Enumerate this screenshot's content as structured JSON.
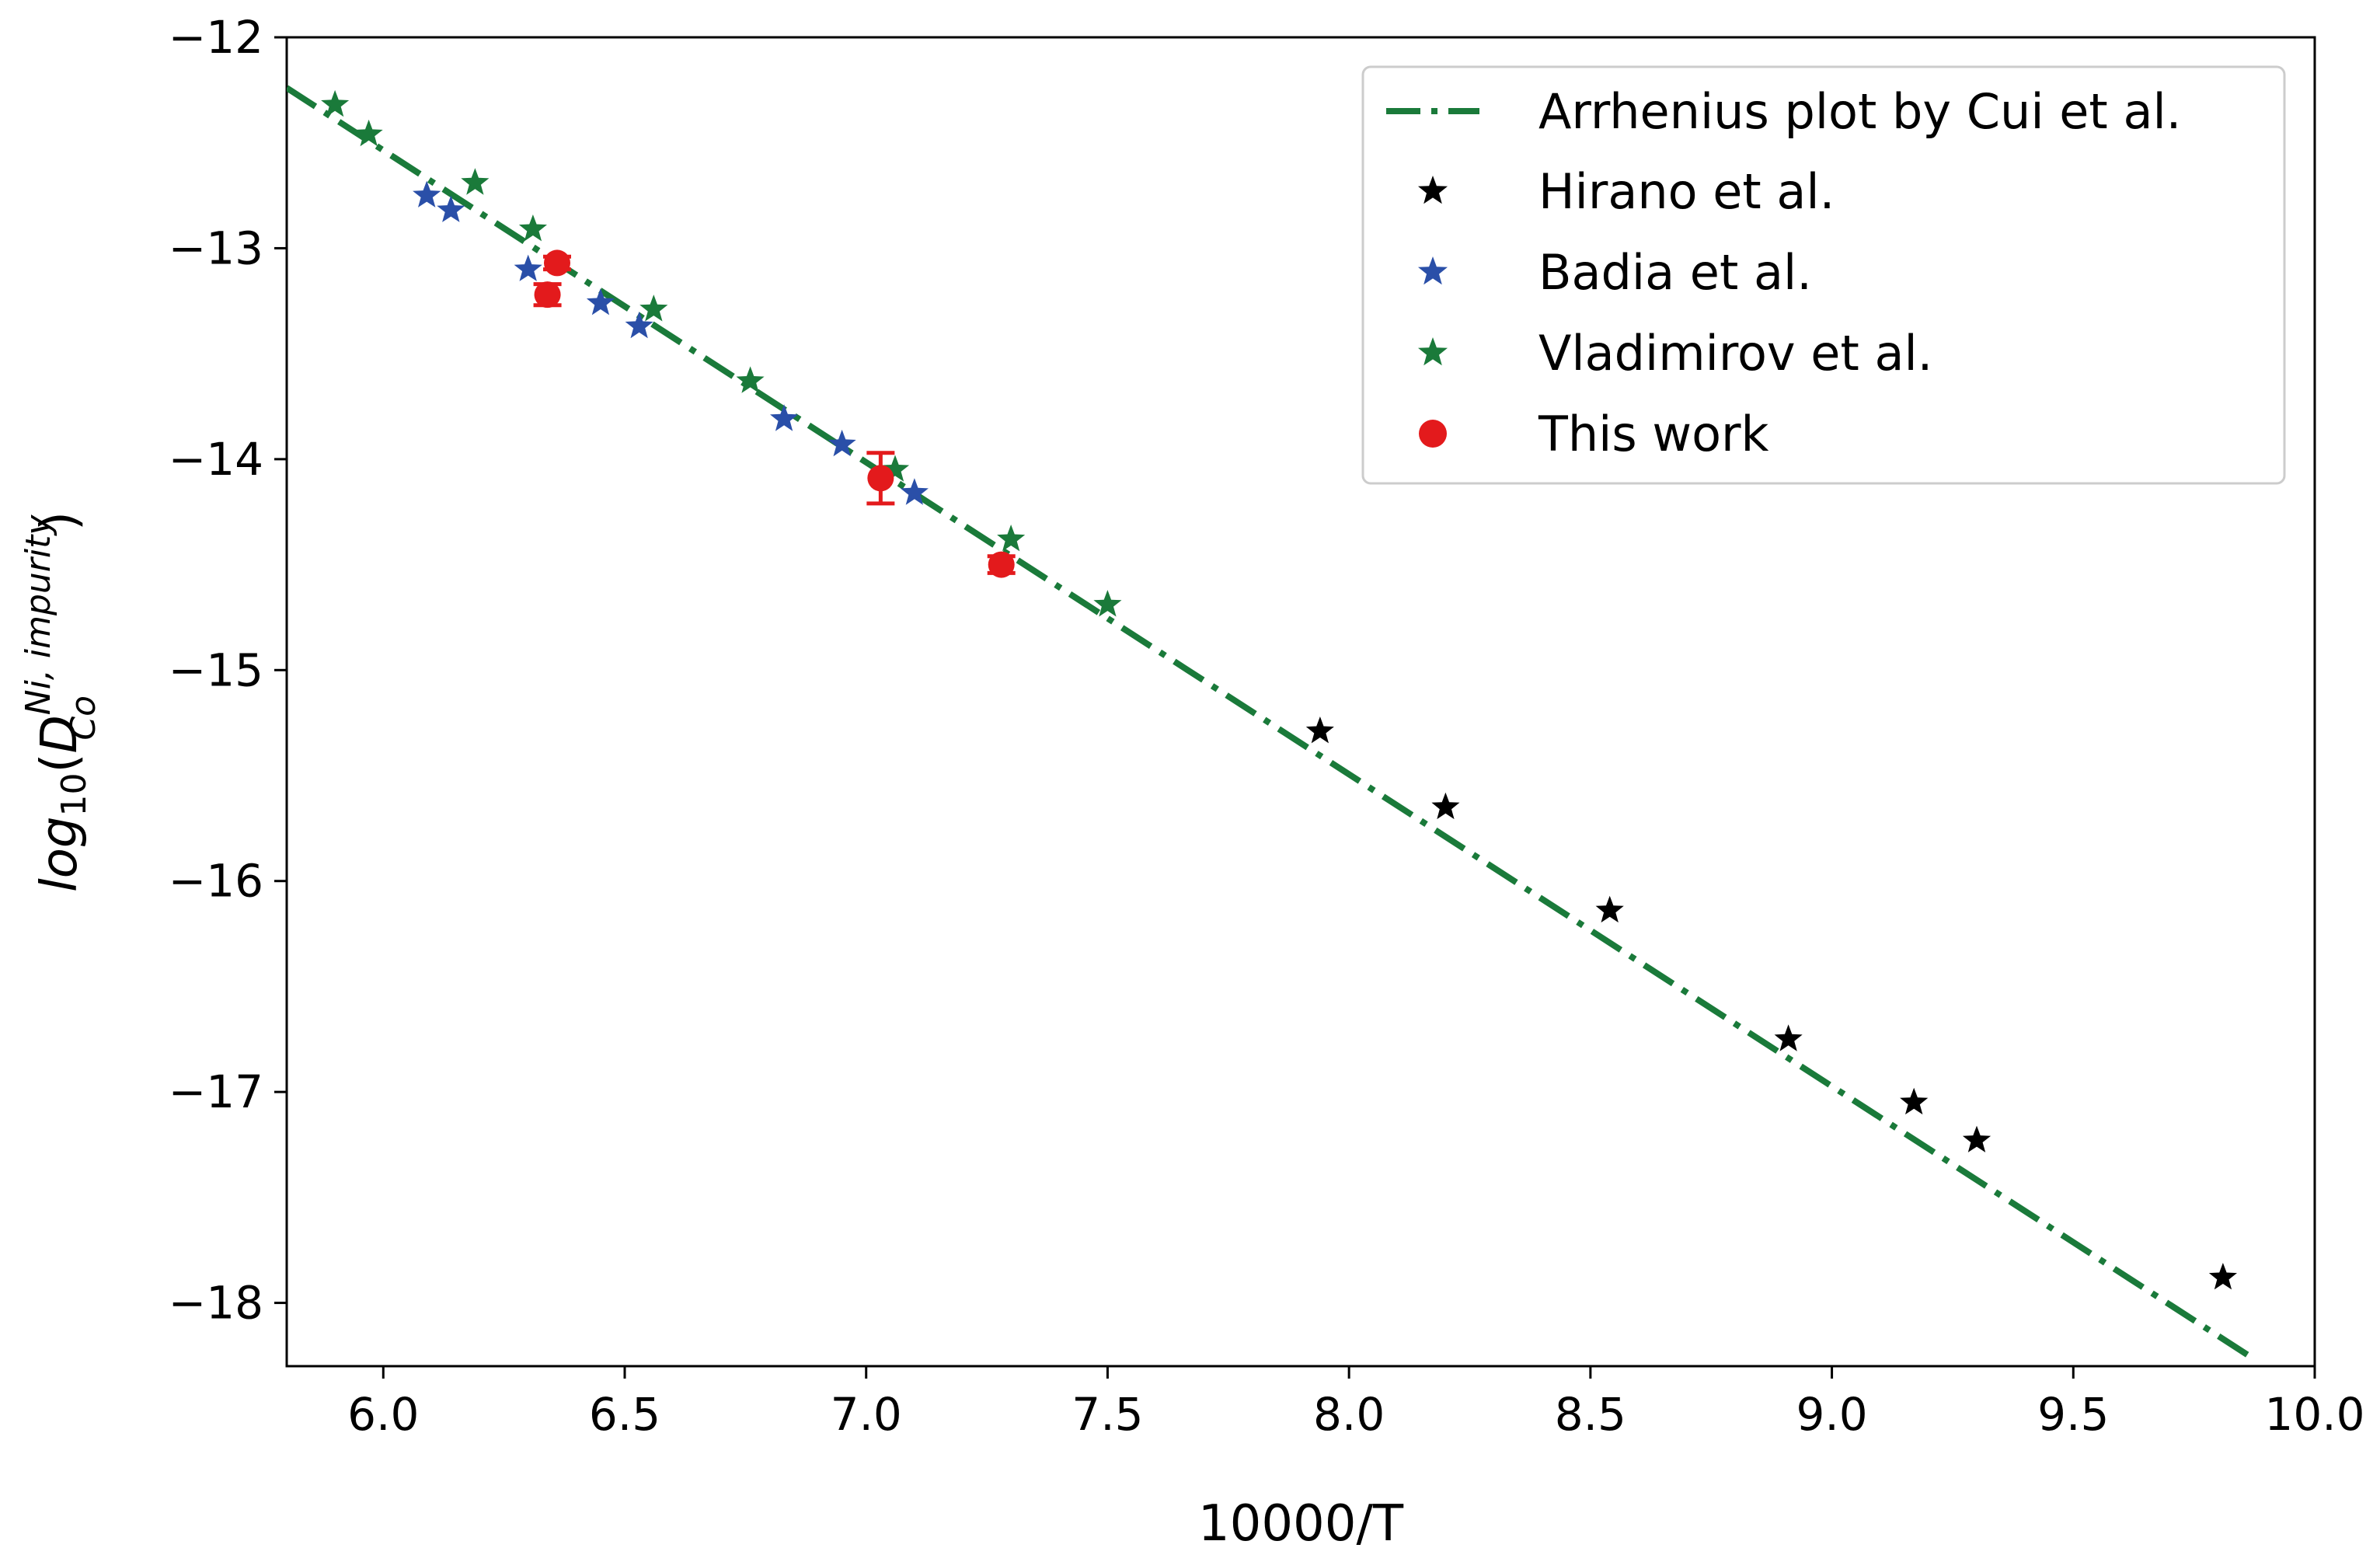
{
  "chart_data": {
    "type": "scatter",
    "title": "",
    "xlabel": "10000/T",
    "ylabel": {
      "base": "log",
      "base_sub": "10",
      "open": "(",
      "var": "D",
      "sub": "Co",
      "sup": "Ni, impurity",
      "close": ")"
    },
    "xlim": [
      5.8,
      10.0
    ],
    "ylim": [
      -18.3,
      -12.0
    ],
    "xticks": [
      6.0,
      6.5,
      7.0,
      7.5,
      8.0,
      8.5,
      9.0,
      9.5,
      10.0
    ],
    "xtick_labels": [
      "6.0",
      "6.5",
      "7.0",
      "7.5",
      "8.0",
      "8.5",
      "9.0",
      "9.5",
      "10.0"
    ],
    "yticks": [
      -12,
      -13,
      -14,
      -15,
      -16,
      -17,
      -18
    ],
    "ytick_labels": [
      "−12",
      "−13",
      "−14",
      "−15",
      "−16",
      "−17",
      "−18"
    ],
    "grid": false,
    "legend_position": "top-right",
    "fit_line": {
      "name": "Arrhenius plot by Cui et al.",
      "color": "#1a7a3a",
      "style": "dash-dot",
      "x": [
        5.8,
        9.87
      ],
      "y": [
        -12.24,
        -18.26
      ]
    },
    "series": [
      {
        "name": "Hirano et al.",
        "marker": "star",
        "color": "#000000",
        "x": [
          7.94,
          8.2,
          8.54,
          8.91,
          9.17,
          9.3,
          9.81
        ],
        "y": [
          -15.29,
          -15.65,
          -16.14,
          -16.75,
          -17.05,
          -17.23,
          -17.88
        ]
      },
      {
        "name": "Badia et al.",
        "marker": "star",
        "color": "#2a4fa8",
        "x": [
          6.09,
          6.14,
          6.3,
          6.45,
          6.53,
          6.83,
          6.95,
          7.1
        ],
        "y": [
          -12.75,
          -12.82,
          -13.1,
          -13.26,
          -13.37,
          -13.81,
          -13.93,
          -14.16
        ]
      },
      {
        "name": "Vladimirov et al.",
        "marker": "star",
        "color": "#1a7a3a",
        "x": [
          5.9,
          5.97,
          6.19,
          6.31,
          6.56,
          6.76,
          7.06,
          7.3,
          7.5
        ],
        "y": [
          -12.32,
          -12.46,
          -12.69,
          -12.91,
          -13.29,
          -13.63,
          -14.05,
          -14.38,
          -14.69
        ]
      },
      {
        "name": "This work",
        "marker": "circle",
        "color": "#e31a1c",
        "x": [
          6.36,
          6.34,
          7.03,
          7.28
        ],
        "y": [
          -13.07,
          -13.22,
          -14.09,
          -14.5
        ],
        "err": [
          0.03,
          0.05,
          0.12,
          0.04
        ]
      }
    ]
  }
}
